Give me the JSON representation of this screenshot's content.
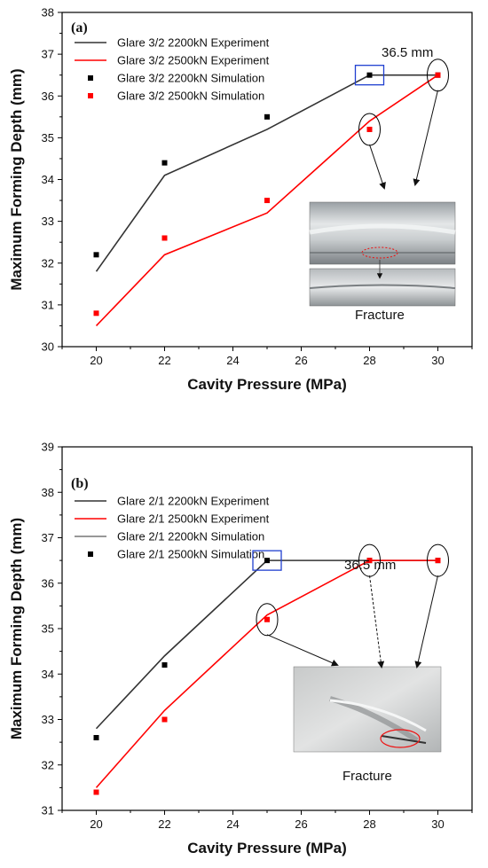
{
  "chart_data": [
    {
      "type": "line",
      "panel_label": "(a)",
      "xlabel": "Cavity Pressure (MPa)",
      "ylabel": "Maximum Forming Depth (mm)",
      "xlim": [
        19,
        31
      ],
      "ylim": [
        30,
        38
      ],
      "xticks": [
        20,
        22,
        24,
        26,
        28,
        30
      ],
      "yticks": [
        30,
        31,
        32,
        33,
        34,
        35,
        36,
        37,
        38
      ],
      "legend_position": "top-left",
      "colors": {
        "series1": "#333333",
        "series2": "#ff0000"
      },
      "series": [
        {
          "name": "Glare 3/2 2200kN Experiment",
          "kind": "line",
          "color": "#333333",
          "x": [
            20,
            22,
            25,
            28,
            30
          ],
          "y": [
            31.8,
            34.1,
            35.2,
            36.5,
            36.5
          ]
        },
        {
          "name": "Glare 3/2 2500kN Experiment",
          "kind": "line",
          "color": "#ff0000",
          "x": [
            20,
            22,
            25,
            28,
            30
          ],
          "y": [
            30.5,
            32.2,
            33.2,
            35.4,
            36.5
          ]
        },
        {
          "name": "Glare 3/2 2200kN Simulation",
          "kind": "marker",
          "color": "#000000",
          "x": [
            20,
            22,
            25,
            28,
            30
          ],
          "y": [
            32.2,
            34.4,
            35.5,
            36.5,
            36.5
          ]
        },
        {
          "name": "Glare 3/2 2500kN Simulation",
          "kind": "marker",
          "color": "#ff0000",
          "x": [
            20,
            22,
            25,
            28,
            30
          ],
          "y": [
            30.8,
            32.6,
            33.5,
            35.2,
            36.5
          ]
        }
      ],
      "annotation": "36.5 mm",
      "highlight_box_point": {
        "x": 28,
        "y": 36.5
      },
      "circled_points": [
        {
          "x": 28,
          "y": 35.2
        },
        {
          "x": 30,
          "y": 36.5
        }
      ],
      "inset_caption": "Fracture"
    },
    {
      "type": "line",
      "panel_label": "(b)",
      "xlabel": "Cavity Pressure (MPa)",
      "ylabel": "Maximum Forming Depth (mm)",
      "xlim": [
        19,
        31
      ],
      "ylim": [
        31,
        39
      ],
      "xticks": [
        20,
        22,
        24,
        26,
        28,
        30
      ],
      "yticks": [
        31,
        32,
        33,
        34,
        35,
        36,
        37,
        38,
        39
      ],
      "legend_position": "top-left",
      "colors": {
        "series1": "#333333",
        "series2": "#ff0000"
      },
      "series": [
        {
          "name": "Glare 2/1 2200kN Experiment",
          "kind": "line",
          "color": "#333333",
          "x": [
            20,
            22,
            25,
            28,
            30
          ],
          "y": [
            32.8,
            34.4,
            36.5,
            36.5,
            36.5
          ]
        },
        {
          "name": "Glare 2/1 2500kN Experiment",
          "kind": "line",
          "color": "#ff0000",
          "x": [
            20,
            22,
            25,
            28,
            30
          ],
          "y": [
            31.5,
            33.2,
            35.3,
            36.5,
            36.5
          ]
        },
        {
          "name": "Glare 2/1 2200kN Simulation",
          "kind": "marker",
          "color": "#000000",
          "x": [
            20,
            22,
            25,
            28,
            30
          ],
          "y": [
            32.6,
            34.2,
            36.5,
            36.5,
            36.5
          ]
        },
        {
          "name": "Glare 2/1 2500kN Simulation",
          "kind": "marker",
          "color": "#ff0000",
          "x": [
            20,
            22,
            25,
            28,
            30
          ],
          "y": [
            31.4,
            33.0,
            35.2,
            36.5,
            36.5
          ]
        }
      ],
      "legend_overrides": [
        {
          "name": "Glare 2/1 2200kN Experiment",
          "kind": "line",
          "color": "#333333"
        },
        {
          "name": "Glare 2/1 2500kN Experiment",
          "kind": "line",
          "color": "#ff0000"
        },
        {
          "name": "Glare 2/1 2200kN Simulation",
          "kind": "line",
          "color": "#777777"
        },
        {
          "name": "Glare 2/1 2500kN Simulation",
          "kind": "marker",
          "color": "#000000"
        }
      ],
      "annotation": "36.5 mm",
      "highlight_box_point": {
        "x": 25,
        "y": 36.5
      },
      "circled_points": [
        {
          "x": 25,
          "y": 35.2
        },
        {
          "x": 28,
          "y": 36.5
        },
        {
          "x": 30,
          "y": 36.5
        }
      ],
      "inset_caption": "Fracture"
    }
  ]
}
